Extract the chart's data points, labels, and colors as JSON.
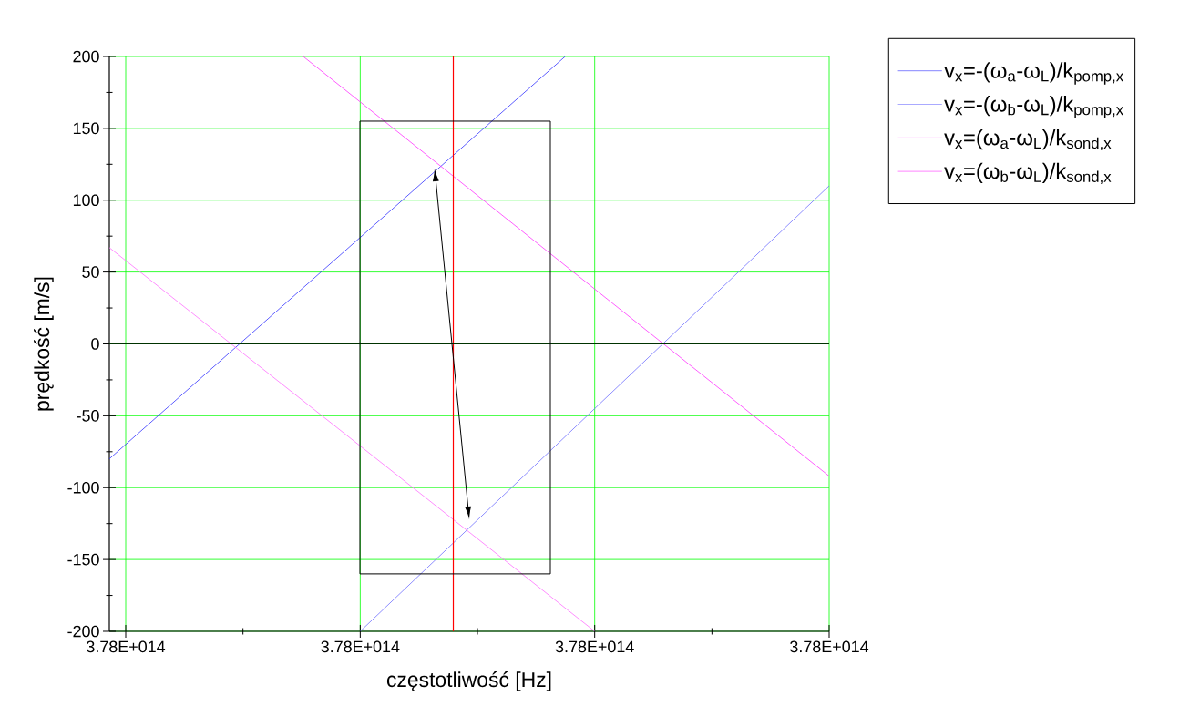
{
  "chart_data": {
    "type": "line",
    "xlabel": "częstotliwość [Hz]",
    "ylabel": "prędkość [m/s]",
    "series": [
      {
        "name": "v$_{x}$=-(ω$_{a}$-ω$_{L}$)/k$_{pomp,x}$",
        "color": "#3333ff",
        "x": [
          377999986000000,
          378000374800000
        ],
        "values": [
          -80,
          200
        ]
      },
      {
        "name": "v$_{x}$=-(ω$_{b}$-ω$_{L}$)/k$_{pomp,x}$",
        "color": "#7070ff",
        "x": [
          378000200000000,
          378000600000000
        ],
        "values": [
          -200,
          110
        ]
      },
      {
        "name": "v$_{x}$=(ω$_{a}$-ω$_{L}$)/k$_{sond,x}$",
        "color": "#ff70ff",
        "x": [
          377999986000000,
          378000400000000
        ],
        "values": [
          67,
          -200
        ]
      },
      {
        "name": "v$_{x}$=(ω$_{b}$-ω$_{L}$)/k$_{sond,x}$",
        "color": "#ff33ff",
        "x": [
          378000151400000,
          378000600000000
        ],
        "values": [
          200,
          -92
        ]
      }
    ],
    "xlim": [
      377999986000000,
      378000600000000
    ],
    "ylim": [
      -200,
      200
    ],
    "xticks": [
      {
        "value": 378000000000000,
        "label": "3.78E+014"
      },
      {
        "value": 378000200000000,
        "label": "3.78E+014"
      },
      {
        "value": 378000400000000,
        "label": "3.78E+014"
      },
      {
        "value": 378000600000000,
        "label": "3.78E+014"
      }
    ],
    "yticks": [
      -200,
      -150,
      -100,
      -50,
      0,
      50,
      100,
      150,
      200
    ],
    "ref_lines": [
      {
        "axis": "x",
        "value": 378000279400000,
        "color": "#ff0000"
      },
      {
        "axis": "y",
        "value": 0,
        "color": "#003300"
      }
    ],
    "grid": true,
    "legend": "top right",
    "marker": "none",
    "line_style": "solid"
  }
}
